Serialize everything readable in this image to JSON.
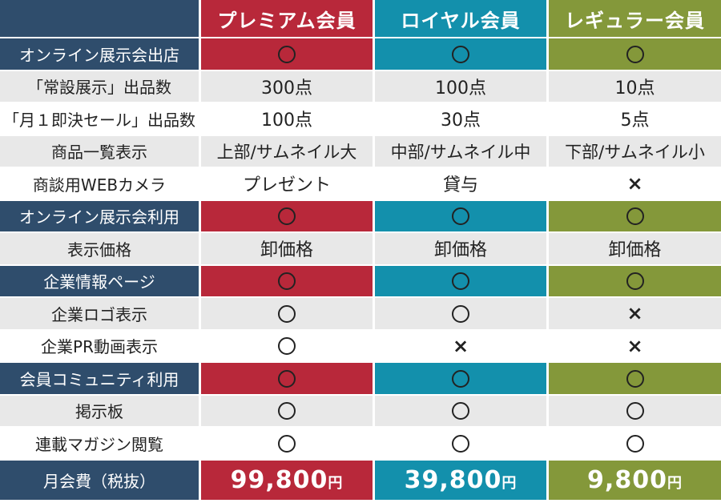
{
  "colors": {
    "premium": "#b8283a",
    "royal": "#1390ac",
    "regular": "#84983a",
    "label_dark": "#2f4d6c",
    "light_row": "#e8e8e8"
  },
  "plans": [
    {
      "name": "プレミアム会員",
      "price": "99,800",
      "yen": "円",
      "color": "#b8283a"
    },
    {
      "name": "ロイヤル会員",
      "price": "39,800",
      "yen": "円",
      "color": "#1390ac"
    },
    {
      "name": "レギュラー会員",
      "price": "9,800",
      "yen": "円",
      "color": "#84983a"
    }
  ],
  "rows": [
    {
      "label": "オンライン展示会出店",
      "style": "section",
      "values": [
        "○",
        "○",
        "○"
      ]
    },
    {
      "label": "「常設展示」出品数",
      "style": "plain",
      "values": [
        "300点",
        "100点",
        "10点"
      ]
    },
    {
      "label": "「月１即決セール」出品数",
      "style": "plain",
      "values": [
        "100点",
        "30点",
        "5点"
      ]
    },
    {
      "label": "商品一覧表示",
      "style": "plain",
      "values": [
        "上部/サムネイル大",
        "中部/サムネイル中",
        "下部/サムネイル小"
      ]
    },
    {
      "label": "商談用WEBカメラ",
      "style": "plain",
      "values": [
        "プレゼント",
        "貸与",
        "×"
      ]
    },
    {
      "label": "オンライン展示会利用",
      "style": "section",
      "values": [
        "○",
        "○",
        "○"
      ]
    },
    {
      "label": "表示価格",
      "style": "plain",
      "values": [
        "卸価格",
        "卸価格",
        "卸価格"
      ]
    },
    {
      "label": "企業情報ページ",
      "style": "section",
      "values": [
        "○",
        "○",
        "○"
      ]
    },
    {
      "label": "企業ロゴ表示",
      "style": "plain",
      "values": [
        "○",
        "○",
        "×"
      ]
    },
    {
      "label": "企業PR動画表示",
      "style": "plain",
      "values": [
        "○",
        "×",
        "×"
      ]
    },
    {
      "label": "会員コミュニティ利用",
      "style": "section",
      "values": [
        "○",
        "○",
        "○"
      ]
    },
    {
      "label": "掲示板",
      "style": "plain",
      "values": [
        "○",
        "○",
        "○"
      ]
    },
    {
      "label": "連載マガジン閲覧",
      "style": "plain",
      "values": [
        "○",
        "○",
        "○"
      ]
    }
  ],
  "price_label": "月会費（税抜）"
}
